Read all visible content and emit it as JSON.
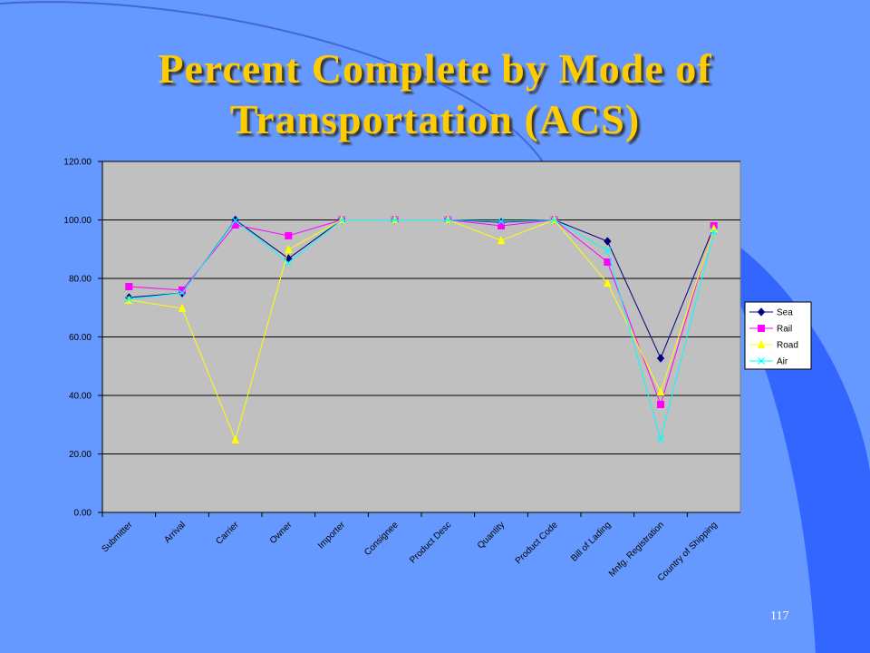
{
  "chart_data": {
    "type": "line",
    "title": "Percent Complete by Mode of Transportation (ACS)",
    "categories": [
      "Submitter",
      "Arrival",
      "Carrier",
      "Owner",
      "Importer",
      "Consignee",
      "Product Desc",
      "Quantity",
      "Product Code",
      "Bill of Lading",
      "Mnfg. Registration",
      "Country of Shipping"
    ],
    "series": [
      {
        "name": "Sea",
        "color": "#000080",
        "marker": "diamond",
        "values": [
          73.5,
          75,
          100,
          86.8,
          100,
          100,
          100,
          99.2,
          100,
          92.7,
          52.7,
          97.7
        ]
      },
      {
        "name": "Rail",
        "color": "#ff00ff",
        "marker": "square",
        "values": [
          77.2,
          76,
          98.3,
          94.6,
          100,
          100,
          100,
          98,
          100,
          85.6,
          36.9,
          98
        ]
      },
      {
        "name": "Road",
        "color": "#ffff00",
        "marker": "triangle",
        "values": [
          72.6,
          69.8,
          24.8,
          89.9,
          100,
          100,
          100,
          93,
          100,
          78.4,
          41.2,
          97
        ]
      },
      {
        "name": "Air",
        "color": "#00ffff",
        "marker": "x",
        "values": [
          72.9,
          75,
          99.8,
          85.3,
          100,
          100,
          100,
          99.5,
          100,
          89.6,
          25,
          96
        ]
      }
    ],
    "ylim": [
      0,
      120
    ],
    "yticks": [
      {
        "value": 0,
        "label": "0.00"
      },
      {
        "value": 20,
        "label": "20.00"
      },
      {
        "value": 40,
        "label": "40.00"
      },
      {
        "value": 60,
        "label": "60.00"
      },
      {
        "value": 80,
        "label": "80.00"
      },
      {
        "value": 100,
        "label": "100.00"
      },
      {
        "value": 120,
        "label": "120.00"
      }
    ],
    "grid": true,
    "legend": "right"
  },
  "slide": {
    "page_number": "117"
  }
}
